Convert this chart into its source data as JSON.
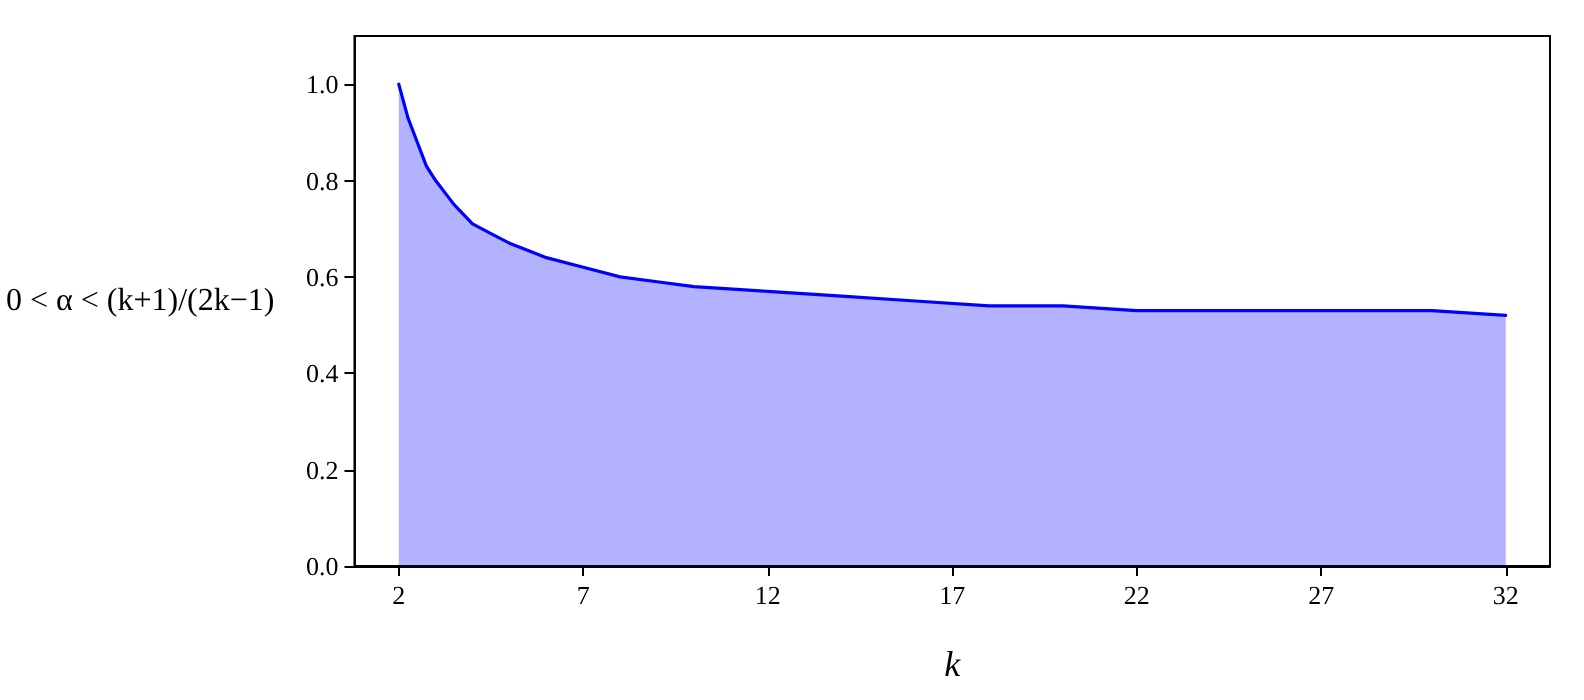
{
  "chart_data": {
    "type": "area",
    "xlabel": "k",
    "ylabel": "0 < α < (k+1)/(2k−1)",
    "x": [
      2,
      2.25,
      2.5,
      2.75,
      3,
      3.5,
      4,
      4.5,
      5,
      6,
      7,
      8,
      9,
      10,
      12,
      14,
      16,
      18,
      20,
      22,
      24,
      26,
      28,
      30,
      32
    ],
    "series": [
      {
        "color": "#0000ff",
        "values": [
          1.0,
          0.93,
          0.88,
          0.83,
          0.8,
          0.75,
          0.71,
          0.69,
          0.67,
          0.64,
          0.62,
          0.6,
          0.59,
          0.58,
          0.57,
          0.56,
          0.55,
          0.54,
          0.54,
          0.53,
          0.53,
          0.53,
          0.53,
          0.53,
          0.52
        ]
      }
    ],
    "xlim": [
      0.8,
      33.2
    ],
    "xticks": [
      2,
      7,
      12,
      17,
      22,
      27,
      32
    ],
    "ylim": [
      0,
      1.1
    ],
    "yticks": [
      {
        "value": 0,
        "label": "0.0"
      },
      {
        "value": 0.2,
        "label": "0.2"
      },
      {
        "value": 0.4,
        "label": "0.4"
      },
      {
        "value": 0.6,
        "label": "0.6"
      },
      {
        "value": 0.8,
        "label": "0.8"
      },
      {
        "value": 1.0,
        "label": "1.0"
      }
    ],
    "grid": false,
    "marker": "none",
    "line_style": "solid"
  }
}
